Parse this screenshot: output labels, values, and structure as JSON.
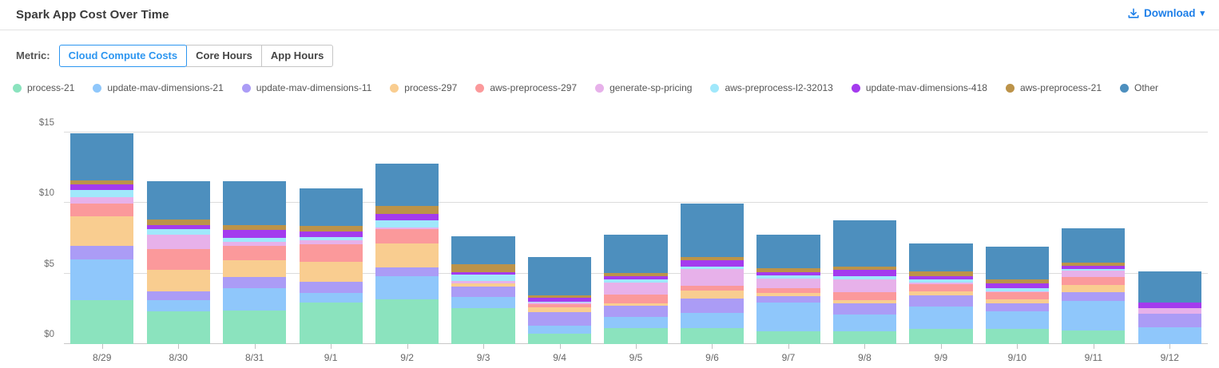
{
  "header": {
    "title": "Spark App Cost Over Time",
    "download_label": "Download",
    "caret_glyph": "▾"
  },
  "metric": {
    "label": "Metric:",
    "options": [
      {
        "label": "Cloud Compute Costs",
        "active": true
      },
      {
        "label": "Core Hours",
        "active": false
      },
      {
        "label": "App Hours",
        "active": false
      }
    ]
  },
  "colors": {
    "accent_blue": "#1e7fe8",
    "active_tab_blue": "#2d96f0",
    "gridline": "#dcdcdc",
    "axis_text": "#6e6e6e"
  },
  "chart_data": {
    "type": "bar",
    "stacked": true,
    "title": "Spark App Cost Over Time",
    "xlabel": "",
    "ylabel": "",
    "ytick_prefix": "$",
    "yticks": [
      0,
      5,
      10,
      15
    ],
    "ylim": [
      0,
      15
    ],
    "grid": true,
    "legend_position": "top",
    "categories": [
      "8/29",
      "8/30",
      "8/31",
      "9/1",
      "9/2",
      "9/3",
      "9/4",
      "9/5",
      "9/6",
      "9/7",
      "9/8",
      "9/9",
      "9/10",
      "9/11",
      "9/12"
    ],
    "series": [
      {
        "name": "process-21",
        "color": "#8BE3BE",
        "values": [
          3.14,
          2.31,
          2.4,
          2.95,
          3.19,
          2.53,
          0.71,
          1.12,
          1.16,
          0.93,
          0.93,
          1.06,
          1.06,
          0.95,
          0
        ]
      },
      {
        "name": "update-mav-dimensions-21",
        "color": "#8FC7FB",
        "values": [
          2.86,
          0.79,
          1.54,
          0.65,
          1.6,
          0.81,
          0.6,
          0.79,
          1.03,
          2.04,
          1.19,
          1.61,
          1.25,
          2.11,
          1.2
        ]
      },
      {
        "name": "update-mav-dimensions-11",
        "color": "#AB9CF6",
        "values": [
          0.96,
          0.66,
          0.79,
          0.82,
          0.66,
          0.75,
          0.98,
          0.81,
          1.06,
          0.45,
          0.79,
          0.8,
          0.6,
          0.62,
          0.94
        ]
      },
      {
        "name": "process-297",
        "color": "#F9CD90",
        "values": [
          2.11,
          1.51,
          1.19,
          1.41,
          1.7,
          0.19,
          0.3,
          0.19,
          0.55,
          0.21,
          0.23,
          0.25,
          0.28,
          0.53,
          0
        ]
      },
      {
        "name": "aws-preprocess-297",
        "color": "#FB999B",
        "values": [
          0.9,
          1.44,
          1.07,
          1.22,
          1.0,
          0.05,
          0.23,
          0.6,
          0.34,
          0.35,
          0.52,
          0.51,
          0.47,
          0.55,
          0
        ]
      },
      {
        "name": "generate-sp-pricing",
        "color": "#E7B1EA",
        "values": [
          0.47,
          1.04,
          0.25,
          0.32,
          0.1,
          0.14,
          0.15,
          0.87,
          1.16,
          0.68,
          0.94,
          0.13,
          0.08,
          0.43,
          0.41
        ]
      },
      {
        "name": "aws-preprocess-l2-32013",
        "color": "#A0E8FB",
        "values": [
          0.51,
          0.43,
          0.32,
          0.23,
          0.51,
          0.47,
          0.02,
          0.21,
          0.21,
          0.19,
          0.23,
          0.21,
          0.2,
          0.15,
          0
        ]
      },
      {
        "name": "update-mav-dimensions-418",
        "color": "#A43BEE",
        "values": [
          0.35,
          0.25,
          0.53,
          0.38,
          0.46,
          0.15,
          0.32,
          0.2,
          0.41,
          0.26,
          0.44,
          0.22,
          0.38,
          0.19,
          0.38
        ]
      },
      {
        "name": "aws-preprocess-21",
        "color": "#BC9349",
        "values": [
          0.3,
          0.41,
          0.34,
          0.38,
          0.57,
          0.6,
          0.13,
          0.25,
          0.23,
          0.26,
          0.24,
          0.34,
          0.25,
          0.22,
          0
        ]
      },
      {
        "name": "Other",
        "color": "#4D8FBE",
        "values": [
          3.35,
          2.71,
          3.14,
          2.67,
          3.01,
          1.98,
          2.74,
          2.71,
          3.82,
          2.38,
          3.29,
          1.98,
          2.33,
          2.45,
          2.22
        ]
      }
    ]
  }
}
